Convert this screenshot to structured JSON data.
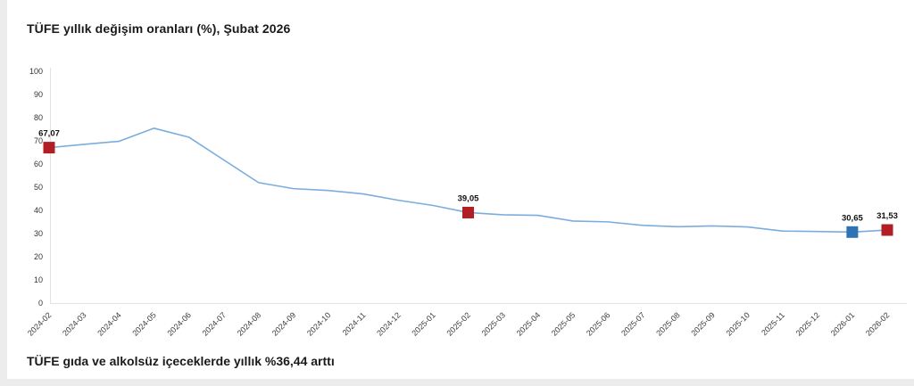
{
  "page": {
    "title": "TÜFE yıllık değişim oranları (%), Şubat 2026",
    "footer_headline": "TÜFE gıda ve alkolsüz içeceklerde yıllık %36,44 arttı"
  },
  "colors": {
    "page_bg": "#ececec",
    "card_bg": "#ffffff",
    "line": "#7aadde",
    "marker_red": "#b11f24",
    "marker_blue": "#2e74b5",
    "axis": "#e2e2e2",
    "tick_text": "#333333",
    "label_text": "#111111"
  },
  "chart_data": {
    "type": "line",
    "title": "TÜFE yıllık değişim oranları (%), Şubat 2026",
    "xlabel": "",
    "ylabel": "",
    "ylim": [
      0,
      100
    ],
    "yticks": [
      0,
      10,
      20,
      30,
      40,
      50,
      60,
      70,
      80,
      90,
      100
    ],
    "grid": "left axis line and zero baseline only, no inner gridlines",
    "legend": "none",
    "categories": [
      "2024-02",
      "2024-03",
      "2024-04",
      "2024-05",
      "2024-06",
      "2024-07",
      "2024-08",
      "2024-09",
      "2024-10",
      "2024-11",
      "2024-12",
      "2025-01",
      "2025-02",
      "2025-03",
      "2025-04",
      "2025-05",
      "2025-06",
      "2025-07",
      "2025-08",
      "2025-09",
      "2025-10",
      "2025-11",
      "2025-12",
      "2026-01",
      "2026-02"
    ],
    "values": [
      67.07,
      68.5,
      69.8,
      75.45,
      71.6,
      61.78,
      51.97,
      49.38,
      48.58,
      47.09,
      44.38,
      42.12,
      39.05,
      38.1,
      37.86,
      35.41,
      35.05,
      33.52,
      32.95,
      33.29,
      32.87,
      31.07,
      30.9,
      30.65,
      31.53
    ],
    "labeled_points": [
      {
        "index": 0,
        "category": "2024-02",
        "value": 67.07,
        "label": "67,07",
        "marker": "red-square"
      },
      {
        "index": 12,
        "category": "2025-02",
        "value": 39.05,
        "label": "39,05",
        "marker": "red-square"
      },
      {
        "index": 23,
        "category": "2026-01",
        "value": 30.65,
        "label": "30,65",
        "marker": "blue-square"
      },
      {
        "index": 24,
        "category": "2026-02",
        "value": 31.53,
        "label": "31,53",
        "marker": "red-square"
      }
    ]
  }
}
